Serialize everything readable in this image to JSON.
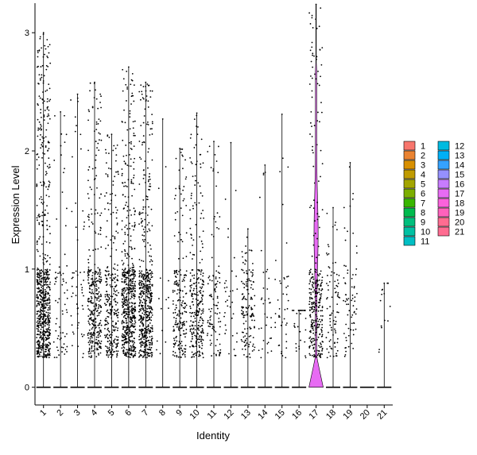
{
  "chart_data": {
    "type": "violin",
    "xlabel": "Identity",
    "ylabel": "Expression Level",
    "categories": [
      "1",
      "2",
      "3",
      "4",
      "5",
      "6",
      "7",
      "8",
      "9",
      "10",
      "11",
      "12",
      "13",
      "14",
      "15",
      "16",
      "17",
      "18",
      "19",
      "20",
      "21"
    ],
    "ylim": [
      -0.15,
      3.25
    ],
    "yticks": [
      0,
      1,
      2,
      3
    ],
    "grid": false,
    "legend_position": "right",
    "legend_columns": [
      [
        "1",
        "2",
        "3",
        "4",
        "5",
        "6",
        "7",
        "8",
        "9",
        "10",
        "11"
      ],
      [
        "12",
        "13",
        "14",
        "15",
        "16",
        "17",
        "18",
        "19",
        "20",
        "21"
      ]
    ],
    "colors": [
      "#F8766D",
      "#EA8331",
      "#D89000",
      "#C09B00",
      "#A3A500",
      "#7CAE00",
      "#39B600",
      "#00BB4E",
      "#00BF7D",
      "#00C1A3",
      "#00BFC4",
      "#00BAE0",
      "#00B0F6",
      "#35A2FF",
      "#9590FF",
      "#C77CFF",
      "#E76BF3",
      "#FA62DB",
      "#FF62BC",
      "#FF6C91",
      "#FF6C91"
    ],
    "max_values": [
      3.0,
      2.33,
      2.48,
      2.58,
      2.14,
      2.71,
      2.58,
      2.27,
      2.02,
      2.32,
      2.08,
      2.07,
      1.34,
      1.88,
      2.31,
      0.65,
      3.24,
      1.52,
      1.9,
      0.0,
      0.88
    ],
    "nonzero_density": [
      1.0,
      0.1,
      0.08,
      0.5,
      0.4,
      0.85,
      0.75,
      0.02,
      0.3,
      0.4,
      0.15,
      0.05,
      0.2,
      0.05,
      0.06,
      0.04,
      0.45,
      0.12,
      0.1,
      0.0,
      0.02
    ],
    "zero_fraction": [
      0.35,
      0.9,
      0.92,
      0.6,
      0.7,
      0.45,
      0.5,
      0.98,
      0.75,
      0.65,
      0.9,
      0.97,
      0.85,
      0.97,
      0.95,
      0.97,
      0.55,
      0.9,
      0.92,
      1.0,
      0.98
    ],
    "highlight_violin_width": [
      0,
      0,
      0,
      0,
      0,
      0,
      0,
      0,
      0,
      0,
      0,
      0,
      0,
      0,
      0,
      0,
      1.0,
      0,
      0,
      0,
      0
    ]
  }
}
